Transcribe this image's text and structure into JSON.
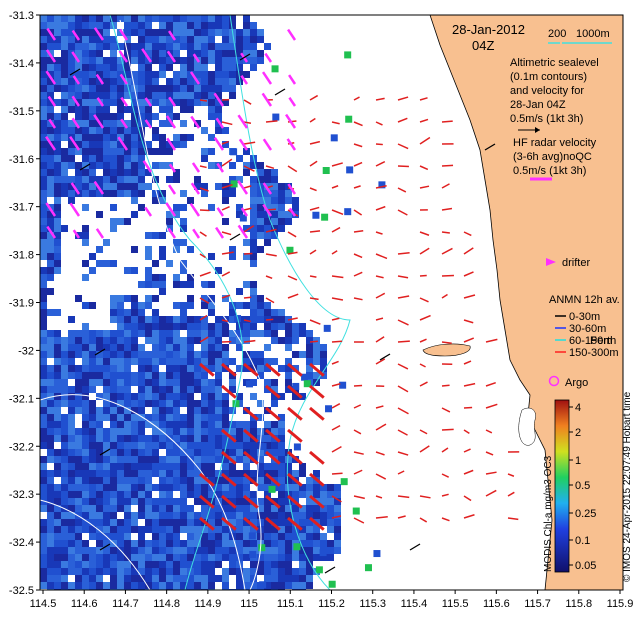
{
  "header": {
    "date": "28-Jan-2012",
    "time": "04Z",
    "scale_small": "200",
    "scale_large": "1000m"
  },
  "legend": {
    "sealevel_lines": [
      "Altimetric sealevel",
      "(0.1m contours)",
      "and velocity for",
      "28-Jan 04Z",
      "0.5m/s (1kt 3h)"
    ],
    "hf_lines": [
      "HF radar velocity",
      "(3-6h avg)noQC",
      "0.5m/s (1kt 3h)"
    ],
    "drifter": "drifter",
    "anmn_title": "ANMN 12h av.",
    "anmn_items": [
      {
        "label": "0-30m",
        "color": "#000000"
      },
      {
        "label": "30-60m",
        "color": "#1e32ff"
      },
      {
        "label": "60-150m",
        "color": "#20e0e0"
      },
      {
        "label": "150-300m",
        "color": "#ff2020"
      }
    ],
    "city": "Perth",
    "argo": "Argo"
  },
  "colorbar": {
    "ticks": [
      "4",
      "2",
      "1",
      "0.5",
      "0.25",
      "0.1",
      "0.05"
    ],
    "label": "MODIS Chl-a mg/m3 OC3",
    "credit": "© IMOS 24-Apr-2015 22:07:49 Hobart time"
  },
  "axes": {
    "x_ticks": [
      "114.5",
      "114.6",
      "114.7",
      "114.8",
      "114.9",
      "115",
      "115.1",
      "115.2",
      "115.3",
      "115.4",
      "115.5",
      "115.6",
      "115.7",
      "115.8",
      "115.9"
    ],
    "y_ticks": [
      "-31.3",
      "-31.4",
      "-31.5",
      "-31.6",
      "-31.7",
      "-31.8",
      "-31.9",
      "-32",
      "-32.1",
      "-32.2",
      "-32.3",
      "-32.4",
      "-32.5"
    ],
    "xlim": [
      114.5,
      115.9
    ],
    "ylim": [
      -32.5,
      -31.3
    ]
  },
  "colors": {
    "land": "#f8c090",
    "ocean_nodata": "#ffffff",
    "chl_dark": "#1a2aa0",
    "chl_mid": "#2050d0",
    "chl_light": "#3a7ae0",
    "hf_arrow": "#e02020",
    "alt_arrow": "#ff30ff",
    "contour": "#40e0e0",
    "grid_line": "#ffffff"
  }
}
